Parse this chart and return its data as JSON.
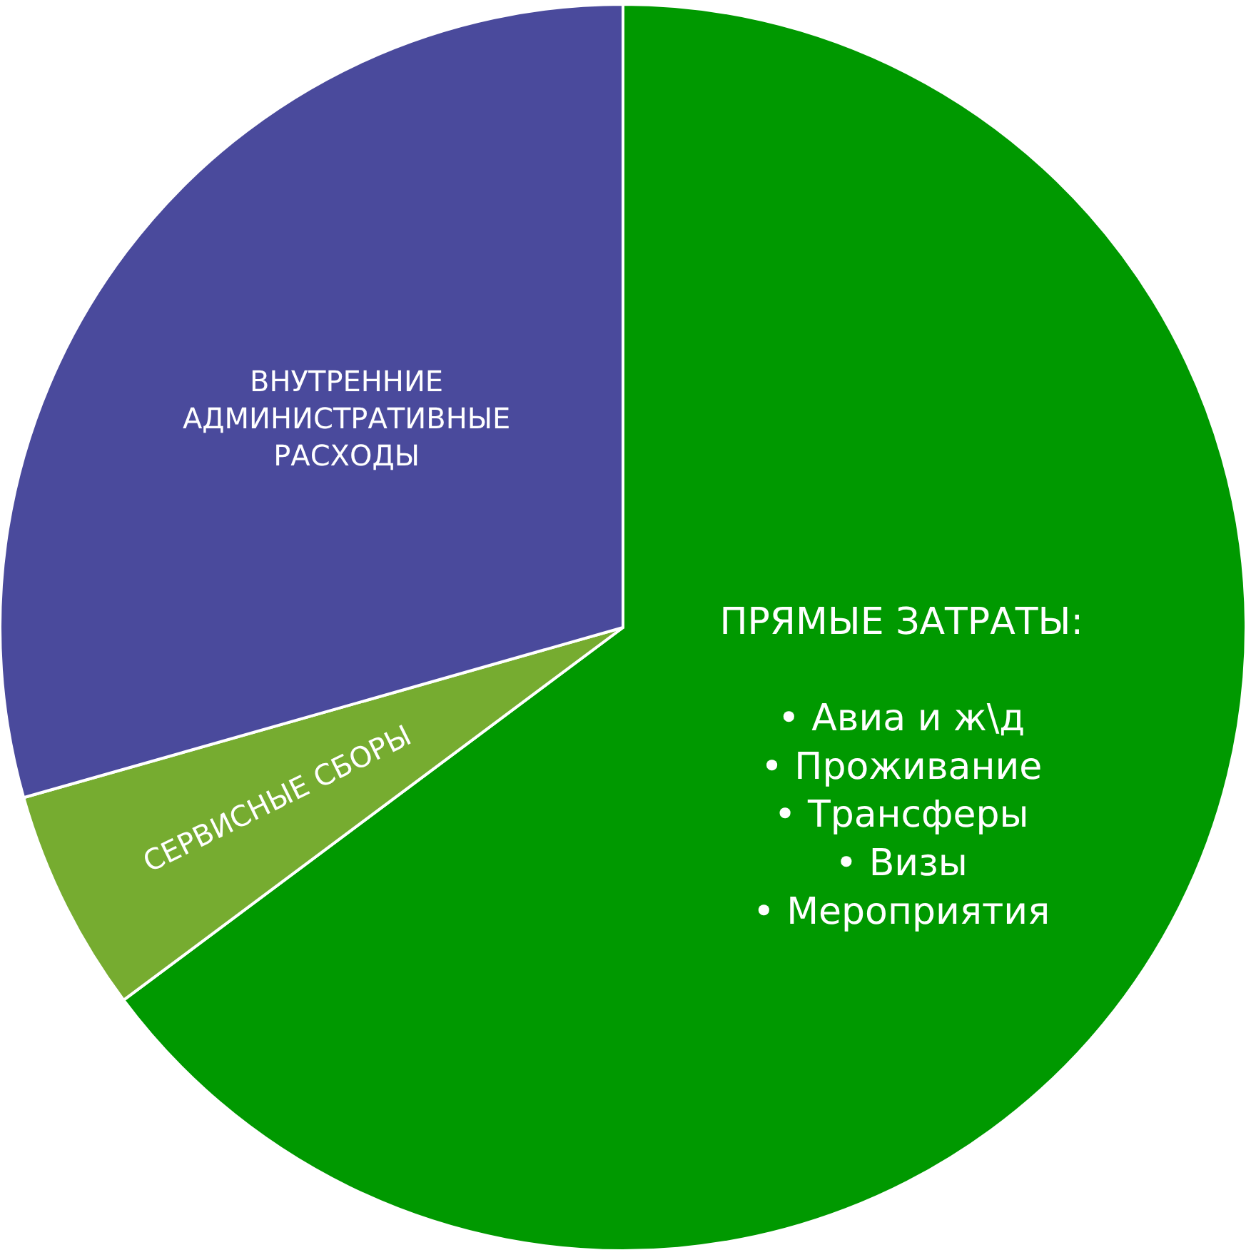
{
  "chart_data": {
    "type": "pie",
    "categories": [
      "ПРЯМЫЕ ЗАТРАТЫ:\n\n• Авиа и ж\\д\n• Проживание\n• Трансферы\n• Визы\n• Мероприятия",
      "СЕРВИСНЫЕ СБОРЫ",
      "ВНУТРЕННИЕ\nАДМИНИСТРАТИВНЫЕ\nРАСХОДЫ"
    ],
    "values": [
      64.8,
      5.8,
      29.4
    ],
    "colors": [
      "#009900",
      "#76ac30",
      "#4a4a9c"
    ]
  }
}
